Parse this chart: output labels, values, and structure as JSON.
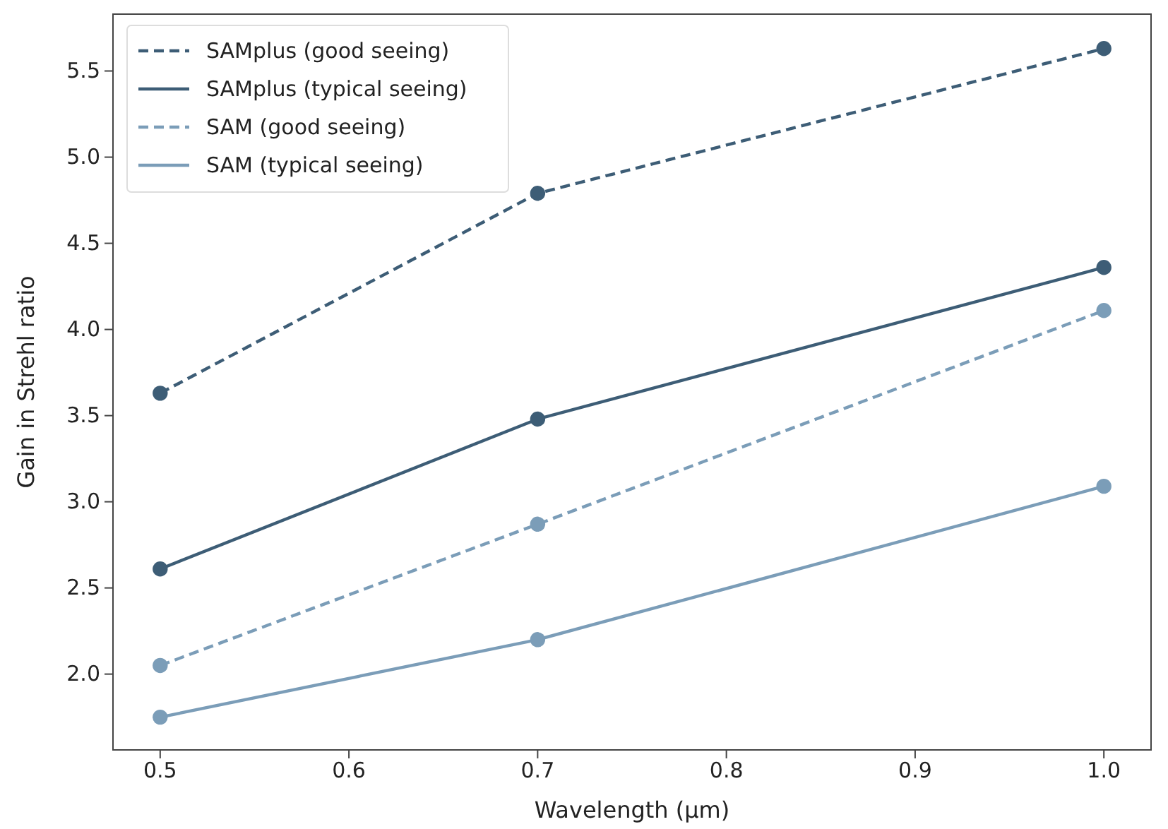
{
  "chart_data": {
    "type": "line",
    "xlabel": "Wavelength (μm)",
    "ylabel": "Gain in Strehl ratio",
    "x": [
      0.5,
      0.7,
      1.0
    ],
    "series": [
      {
        "name": "SAMplus (good seeing)",
        "color": "#3d5d76",
        "line_style": "dashed",
        "values": [
          3.63,
          4.79,
          5.63
        ]
      },
      {
        "name": "SAMplus (typical seeing)",
        "color": "#3d5d76",
        "line_style": "solid",
        "values": [
          2.61,
          3.48,
          4.36
        ]
      },
      {
        "name": "SAM (good seeing)",
        "color": "#7b9db8",
        "line_style": "dashed",
        "values": [
          2.05,
          2.87,
          4.11
        ]
      },
      {
        "name": "SAM (typical seeing)",
        "color": "#7b9db8",
        "line_style": "solid",
        "values": [
          1.75,
          2.2,
          3.09
        ]
      }
    ],
    "xlim": [
      0.475,
      1.025
    ],
    "xticks": [
      {
        "value": 0.5,
        "label": "0.5"
      },
      {
        "value": 0.6,
        "label": "0.6"
      },
      {
        "value": 0.7,
        "label": "0.7"
      },
      {
        "value": 0.8,
        "label": "0.8"
      },
      {
        "value": 0.9,
        "label": "0.9"
      },
      {
        "value": 1.0,
        "label": "1.0"
      }
    ],
    "ylim": [
      1.56,
      5.83
    ],
    "yticks": [
      {
        "value": 2,
        "label": "2.0"
      },
      {
        "value": 2.5,
        "label": "2.5"
      },
      {
        "value": 3,
        "label": "3.0"
      },
      {
        "value": 3.5,
        "label": "3.5"
      },
      {
        "value": 4,
        "label": "4.0"
      },
      {
        "value": 4.5,
        "label": "4.5"
      },
      {
        "value": 5,
        "label": "5.0"
      },
      {
        "value": 5.5,
        "label": "5.5"
      }
    ],
    "grid": false,
    "legend": "top left",
    "marker": "circle"
  }
}
